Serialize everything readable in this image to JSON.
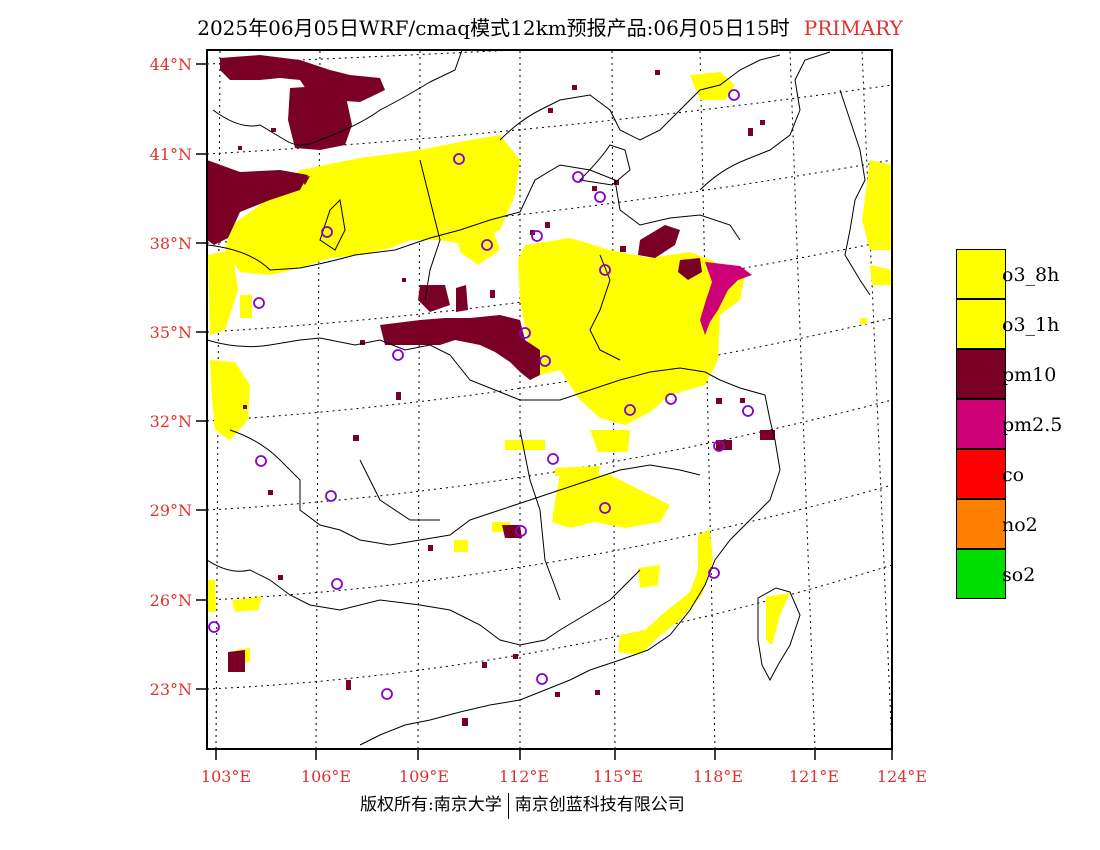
{
  "title": {
    "main": "2025年06月05日WRF/cmaq模式12km预报产品:06月05日15时",
    "tag": "PRIMARY"
  },
  "axes": {
    "lat_labels": [
      "44°N",
      "41°N",
      "38°N",
      "35°N",
      "32°N",
      "29°N",
      "26°N",
      "23°N"
    ],
    "lon_labels": [
      "103°E",
      "106°E",
      "109°E",
      "112°E",
      "115°E",
      "118°E",
      "121°E",
      "124°E"
    ],
    "label_color": "#e03030"
  },
  "legend": {
    "items": [
      {
        "label": "o3_8h",
        "color": "#ffff00"
      },
      {
        "label": "o3_1h",
        "color": "#ffff00"
      },
      {
        "label": "pm10",
        "color": "#7b0026"
      },
      {
        "label": "pm2.5",
        "color": "#cc0077"
      },
      {
        "label": "co",
        "color": "#ff0000"
      },
      {
        "label": "no2",
        "color": "#ff8000"
      },
      {
        "label": "so2",
        "color": "#00dd00"
      }
    ]
  },
  "footer": {
    "left": "版权所有:南京大学",
    "right": "南京创蓝科技有限公司"
  }
}
